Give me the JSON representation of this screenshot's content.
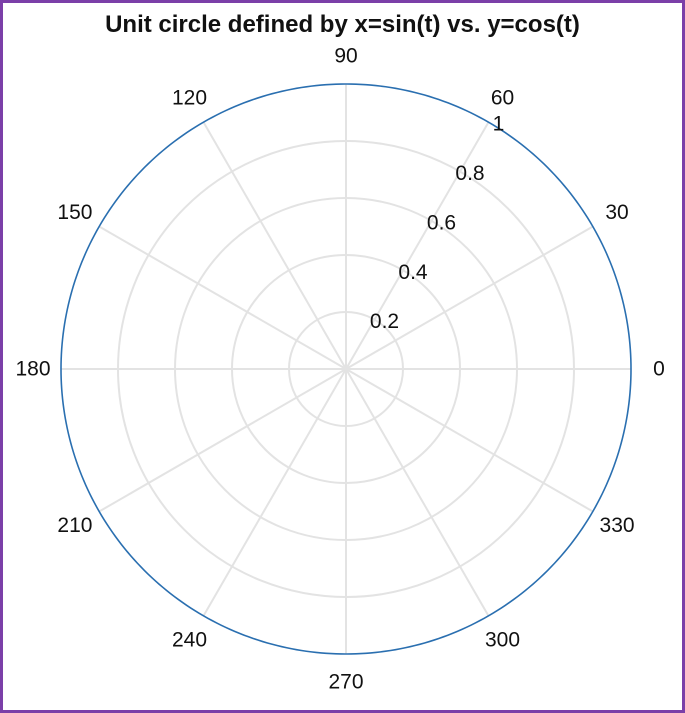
{
  "chart_data": {
    "type": "polar-line",
    "title": "Unit circle defined by x=sin(t) vs. y=cos(t)",
    "theta_unit": "degrees",
    "theta_ticks": [
      0,
      30,
      60,
      90,
      120,
      150,
      180,
      210,
      240,
      270,
      300,
      330
    ],
    "r_ticks": [
      0.2,
      0.4,
      0.6,
      0.8,
      1
    ],
    "r_tick_labels": [
      "0.2",
      "0.4",
      "0.6",
      "0.8",
      "1"
    ],
    "r_tick_label_angle_deg": 60,
    "rlim": [
      0,
      1
    ],
    "grid": true,
    "series": [
      {
        "theta_deg": [
          0,
          30,
          60,
          90,
          120,
          150,
          180,
          210,
          240,
          270,
          300,
          330,
          360
        ],
        "r": [
          1,
          1,
          1,
          1,
          1,
          1,
          1,
          1,
          1,
          1,
          1,
          1,
          1
        ]
      }
    ],
    "colors": {
      "series": "#2a6fb0",
      "grid": "#e3e3e3",
      "frame_border": "#7b3fa8"
    }
  }
}
